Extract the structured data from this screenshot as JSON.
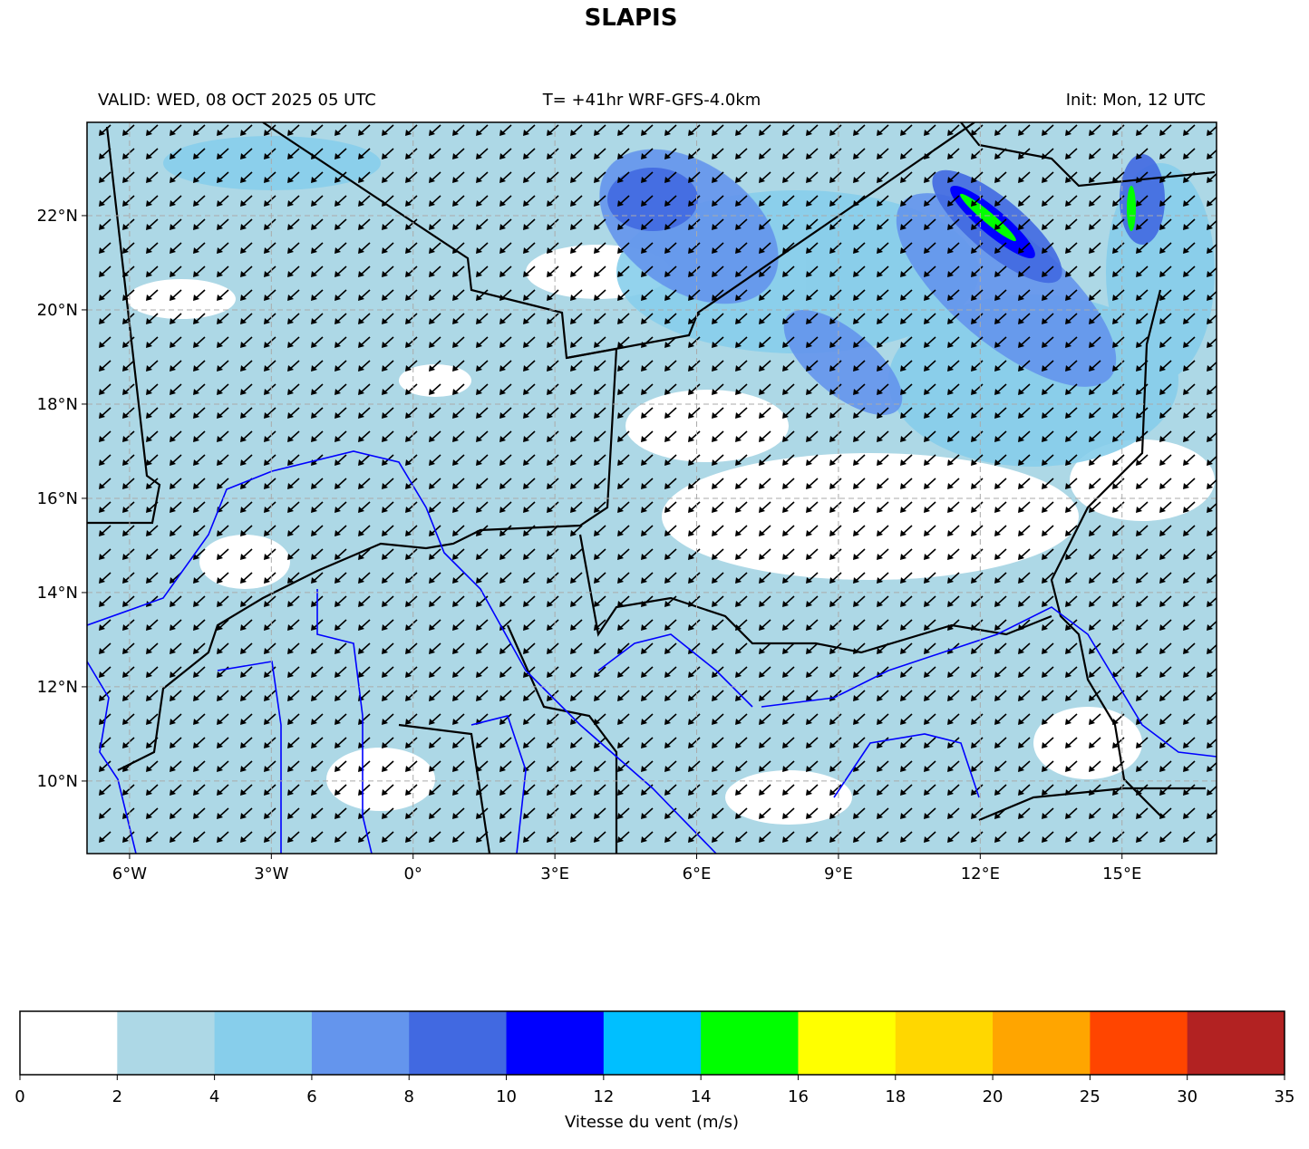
{
  "title": "SLAPIS",
  "valid": "VALID: WED, 08 OCT 2025 05 UTC",
  "model": "T= +41hr WRF-GFS-4.0km",
  "init": "Init: Mon, 12 UTC",
  "map": {
    "lon_range": [
      -6.9,
      17
    ],
    "lat_range": [
      8.46,
      23.98
    ],
    "lon_ticks": [
      {
        "value": -6,
        "label": "6°W"
      },
      {
        "value": -3,
        "label": "3°W"
      },
      {
        "value": 0,
        "label": "0°"
      },
      {
        "value": 3,
        "label": "3°E"
      },
      {
        "value": 6,
        "label": "6°E"
      },
      {
        "value": 9,
        "label": "9°E"
      },
      {
        "value": 12,
        "label": "12°E"
      },
      {
        "value": 15,
        "label": "15°E"
      }
    ],
    "lat_ticks": [
      {
        "value": 10,
        "label": "10°N"
      },
      {
        "value": 12,
        "label": "12°N"
      },
      {
        "value": 14,
        "label": "14°N"
      },
      {
        "value": 16,
        "label": "16°N"
      },
      {
        "value": 18,
        "label": "18°N"
      },
      {
        "value": 20,
        "label": "20°N"
      },
      {
        "value": 22,
        "label": "22°N"
      }
    ]
  },
  "colorbar": {
    "levels": [
      0,
      2,
      4,
      6,
      8,
      10,
      12,
      14,
      16,
      18,
      20,
      25,
      30,
      35
    ],
    "colors": [
      "#ffffff",
      "#add8e6",
      "#87ceeb",
      "#6495ed",
      "#4169e1",
      "#0000ff",
      "#00bfff",
      "#00ff00",
      "#ffff00",
      "#ffd700",
      "#ffa500",
      "#ff4500",
      "#b22222"
    ],
    "label": "Vitesse du vent (m/s)"
  }
}
